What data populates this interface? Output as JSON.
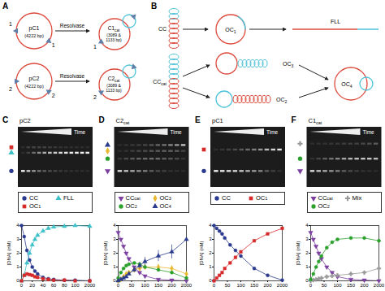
{
  "diagram": {
    "A": {
      "label": "A",
      "arrow_label": "Resolvase",
      "rows": [
        {
          "plasmid": "pC1",
          "plasmid_size": "(4222 bp)",
          "site": "1",
          "product": "C1cat",
          "product_size": "(3089 & 1133 bp)"
        },
        {
          "plasmid": "pC2",
          "plasmid_size": "(4222 bp)",
          "site": "2",
          "product": "C2cat",
          "product_size": "(3089 & 1133 bp)"
        }
      ]
    },
    "B": {
      "label": "B",
      "top": {
        "start": "CC",
        "middle": "OC1",
        "end": "FLL"
      },
      "bottom": {
        "start": "CCcat",
        "upper": "OC3",
        "lower": "OC2",
        "end": "OC4"
      }
    }
  },
  "chart_data": [
    {
      "type": "line",
      "panel": "C",
      "title": "pC2",
      "gel_label": "Time",
      "x": [
        0,
        5,
        10,
        15,
        20,
        25,
        30,
        40,
        50,
        60,
        80,
        100,
        2000
      ],
      "xlim": [
        0,
        2000
      ],
      "xticks": [
        0,
        20,
        40,
        60,
        80,
        100,
        2000
      ],
      "ylim": [
        0,
        4
      ],
      "yticks": [
        0,
        1,
        2,
        3,
        4
      ],
      "y_label": "[DNA] (nM)",
      "series": [
        {
          "name": "CC",
          "color": "#2b3a8f",
          "marker": "circle",
          "values": [
            4.0,
            3.2,
            2.2,
            1.5,
            1.0,
            0.7,
            0.5,
            0.25,
            0.15,
            0.1,
            0.05,
            0.05,
            0.0
          ]
        },
        {
          "name": "FLL",
          "color": "#3cc0c8",
          "marker": "triangle",
          "values": [
            0.0,
            0.4,
            1.3,
            2.0,
            2.6,
            3.0,
            3.3,
            3.6,
            3.8,
            3.9,
            3.95,
            4.0,
            3.95
          ]
        },
        {
          "name": "OC1",
          "color": "#d62a2a",
          "marker": "square",
          "values": [
            0.0,
            0.4,
            0.5,
            0.45,
            0.4,
            0.3,
            0.25,
            0.15,
            0.1,
            0.05,
            0.05,
            0.0,
            0.0
          ]
        }
      ]
    },
    {
      "type": "line",
      "panel": "D",
      "title": "C2cat",
      "gel_label": "Time",
      "x": [
        0,
        10,
        20,
        30,
        40,
        60,
        80,
        100,
        150,
        200,
        2000
      ],
      "xlim": [
        0,
        2000
      ],
      "xticks": [
        0,
        50,
        100,
        150,
        200,
        2000
      ],
      "ylim": [
        0,
        4
      ],
      "yticks": [
        0,
        1,
        2,
        3,
        4
      ],
      "y_label": "[DNA] (nM)",
      "series": [
        {
          "name": "CCcat",
          "color": "#7b3fa0",
          "marker": "triangle-down",
          "values": [
            3.5,
            3.0,
            2.5,
            2.0,
            1.6,
            1.0,
            0.6,
            0.35,
            0.1,
            0.05,
            0.0
          ]
        },
        {
          "name": "OC3",
          "color": "#e8b830",
          "marker": "diamond",
          "values": [
            0.0,
            0.1,
            0.3,
            0.5,
            0.6,
            0.8,
            0.9,
            1.0,
            1.0,
            0.9,
            0.5
          ],
          "errors": [
            0,
            0.05,
            0.1,
            0.1,
            0.1,
            0.15,
            0.15,
            0.2,
            0.2,
            0.2,
            0.15
          ]
        },
        {
          "name": "OC2",
          "color": "#2ca02c",
          "marker": "circle",
          "values": [
            0.2,
            0.6,
            0.9,
            1.1,
            1.2,
            1.3,
            1.2,
            1.0,
            0.8,
            0.6,
            0.2
          ]
        },
        {
          "name": "OC4",
          "color": "#2a3a8c",
          "marker": "triangle",
          "values": [
            0.0,
            0.1,
            0.2,
            0.3,
            0.5,
            0.8,
            1.1,
            1.4,
            1.8,
            2.1,
            3.0
          ],
          "errors": [
            0,
            0.05,
            0.1,
            0.1,
            0.15,
            0.2,
            0.25,
            0.3,
            0.4,
            0.5,
            0.3
          ]
        }
      ]
    },
    {
      "type": "line",
      "panel": "E",
      "title": "pC1",
      "gel_label": "Time",
      "x": [
        0,
        10,
        20,
        30,
        40,
        60,
        80,
        100,
        150,
        200,
        2000
      ],
      "xlim": [
        0,
        2000
      ],
      "xticks": [
        0,
        50,
        100,
        150,
        200,
        2000
      ],
      "ylim": [
        0,
        4
      ],
      "yticks": [
        0,
        1,
        2,
        3,
        4
      ],
      "y_label": "[DNA] (nM)",
      "series": [
        {
          "name": "CC",
          "color": "#2b3a8f",
          "marker": "circle",
          "values": [
            4.0,
            3.8,
            3.6,
            3.4,
            3.1,
            2.6,
            2.2,
            1.8,
            0.9,
            0.4,
            0.05
          ]
        },
        {
          "name": "OC1",
          "color": "#d62a2a",
          "marker": "square",
          "values": [
            0.0,
            0.2,
            0.4,
            0.6,
            0.9,
            1.3,
            1.7,
            2.1,
            2.9,
            3.4,
            3.8
          ]
        }
      ]
    },
    {
      "type": "line",
      "panel": "F",
      "title": "C1cat",
      "gel_label": "Time",
      "x": [
        0,
        10,
        20,
        30,
        40,
        60,
        80,
        100,
        150,
        200,
        2000
      ],
      "xlim": [
        0,
        2000
      ],
      "xticks": [
        0,
        50,
        100,
        150,
        200,
        2000
      ],
      "ylim": [
        0,
        4
      ],
      "yticks": [
        0,
        1,
        2,
        3,
        4
      ],
      "y_label": "[DNA] (nM)",
      "series": [
        {
          "name": "CCcat",
          "color": "#7b3fa0",
          "marker": "triangle-down",
          "values": [
            3.5,
            3.0,
            2.5,
            2.0,
            1.6,
            1.0,
            0.6,
            0.3,
            0.1,
            0.05,
            0.0
          ]
        },
        {
          "name": "Mix",
          "color": "#999999",
          "marker": "cross",
          "values": [
            0.0,
            0.05,
            0.1,
            0.15,
            0.2,
            0.3,
            0.35,
            0.4,
            0.5,
            0.6,
            0.9
          ]
        },
        {
          "name": "OC2",
          "color": "#2ca02c",
          "marker": "circle",
          "values": [
            0.1,
            0.5,
            1.0,
            1.4,
            1.8,
            2.4,
            2.8,
            3.0,
            3.1,
            3.1,
            2.9
          ]
        }
      ]
    }
  ]
}
